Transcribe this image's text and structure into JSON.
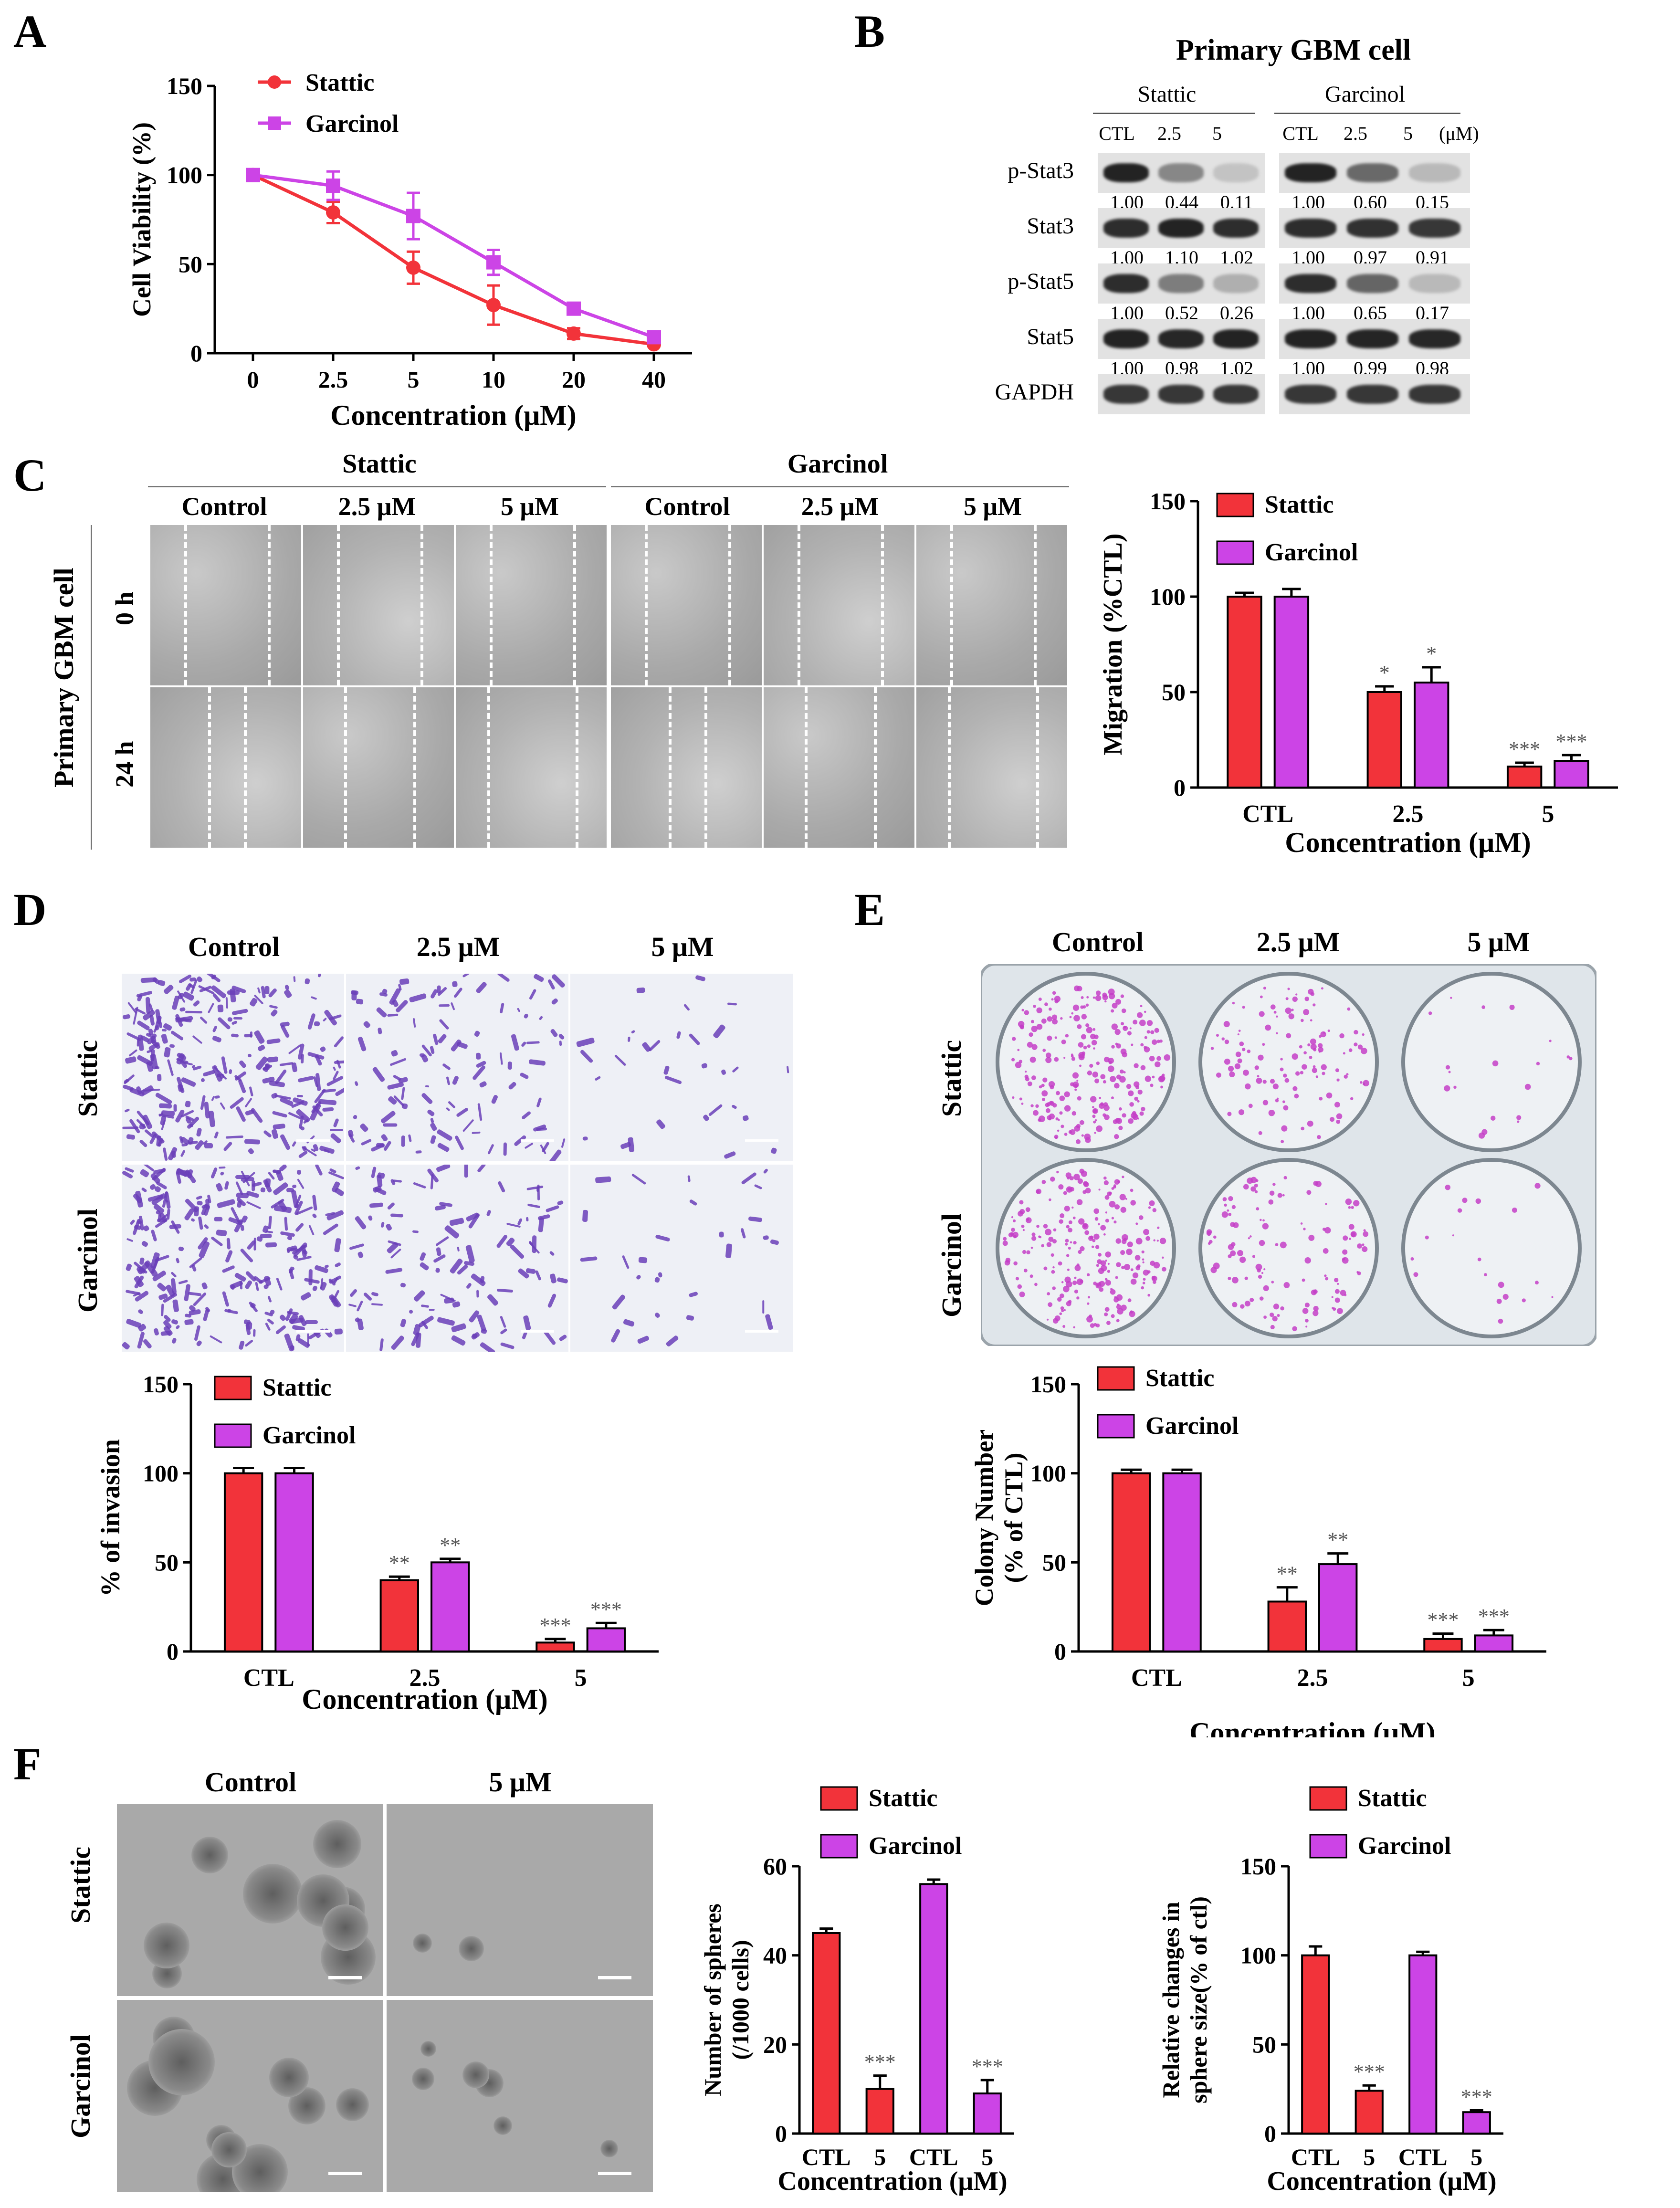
{
  "panels": {
    "A": "A",
    "B": "B",
    "C": "C",
    "D": "D",
    "E": "E",
    "F": "F"
  },
  "colors": {
    "stattic": "#f2333a",
    "garcinol": "#cc44e6"
  },
  "legend": {
    "stattic": "Stattic",
    "garcinol": "Garcinol"
  },
  "chart_data": [
    {
      "id": "A",
      "type": "line",
      "title": "",
      "xlabel": "Concentration (μM)",
      "ylabel": "Cell Viability (%)",
      "categories": [
        "0",
        "2.5",
        "5",
        "10",
        "20",
        "40"
      ],
      "ylim": [
        0,
        150
      ],
      "yticks": [
        "0",
        "50",
        "100",
        "150"
      ],
      "series": [
        {
          "name": "Stattic",
          "values": [
            100,
            79,
            48,
            27,
            11,
            5
          ],
          "errors": [
            3,
            6,
            9,
            11,
            3,
            1
          ]
        },
        {
          "name": "Garcinol",
          "values": [
            100,
            94,
            77,
            51,
            25,
            9
          ],
          "errors": [
            3,
            8,
            13,
            7,
            3,
            1
          ]
        }
      ]
    },
    {
      "id": "C",
      "type": "bar",
      "title": "",
      "xlabel": "Concentration (μM)",
      "ylabel": "Migration (%CTL)",
      "categories": [
        "CTL",
        "2.5",
        "5"
      ],
      "ylim": [
        0,
        150
      ],
      "yticks": [
        "0",
        "50",
        "100",
        "150"
      ],
      "series": [
        {
          "name": "Stattic",
          "values": [
            100,
            50,
            11
          ],
          "errors": [
            2,
            3,
            2
          ]
        },
        {
          "name": "Garcinol",
          "values": [
            100,
            55,
            14
          ],
          "errors": [
            4,
            8,
            3
          ]
        }
      ],
      "annotations": [
        [
          "",
          "*",
          "***"
        ],
        [
          "",
          "*",
          "***"
        ]
      ]
    },
    {
      "id": "D",
      "type": "bar",
      "title": "",
      "xlabel": "Concentration (μM)",
      "ylabel": "% of invasion",
      "categories": [
        "CTL",
        "2.5",
        "5"
      ],
      "ylim": [
        0,
        150
      ],
      "yticks": [
        "0",
        "50",
        "100",
        "150"
      ],
      "series": [
        {
          "name": "Stattic",
          "values": [
            100,
            40,
            5
          ],
          "errors": [
            3,
            2,
            2
          ]
        },
        {
          "name": "Garcinol",
          "values": [
            100,
            50,
            13
          ],
          "errors": [
            3,
            2,
            3
          ]
        }
      ],
      "annotations": [
        [
          "",
          "**",
          "***"
        ],
        [
          "",
          "**",
          "***"
        ]
      ]
    },
    {
      "id": "E",
      "type": "bar",
      "title": "",
      "xlabel": "Concentration (μM)",
      "ylabel": "Colony Number",
      "ylabel2": "(% of CTL)",
      "categories": [
        "CTL",
        "2.5",
        "5"
      ],
      "ylim": [
        0,
        150
      ],
      "yticks": [
        "0",
        "50",
        "100",
        "150"
      ],
      "series": [
        {
          "name": "Stattic",
          "values": [
            100,
            28,
            7
          ],
          "errors": [
            2,
            8,
            3
          ]
        },
        {
          "name": "Garcinol",
          "values": [
            100,
            49,
            9
          ],
          "errors": [
            2,
            6,
            3
          ]
        }
      ],
      "annotations": [
        [
          "",
          "**",
          "***"
        ],
        [
          "",
          "**",
          "***"
        ]
      ]
    },
    {
      "id": "F1",
      "type": "bar",
      "title": "",
      "xlabel": "Concentration (μM)",
      "ylabel": "Number of spheres",
      "ylabel2": "(/1000 cells)",
      "categories": [
        "CTL",
        "5",
        "CTL",
        "5"
      ],
      "ylim": [
        0,
        60
      ],
      "yticks": [
        "0",
        "20",
        "40",
        "60"
      ],
      "bars": [
        {
          "series": "Stattic",
          "value": 45,
          "error": 1,
          "mark": ""
        },
        {
          "series": "Stattic",
          "value": 10,
          "error": 3,
          "mark": "***"
        },
        {
          "series": "Garcinol",
          "value": 56,
          "error": 1,
          "mark": ""
        },
        {
          "series": "Garcinol",
          "value": 9,
          "error": 3,
          "mark": "***"
        }
      ]
    },
    {
      "id": "F2",
      "type": "bar",
      "title": "",
      "xlabel": "Concentration (μM)",
      "ylabel": "Relative changes in",
      "ylabel2": "sphere size(% of ctl)",
      "categories": [
        "CTL",
        "5",
        "CTL",
        "5"
      ],
      "ylim": [
        0,
        150
      ],
      "yticks": [
        "0",
        "50",
        "100",
        "150"
      ],
      "bars": [
        {
          "series": "Stattic",
          "value": 100,
          "error": 5,
          "mark": ""
        },
        {
          "series": "Stattic",
          "value": 24,
          "error": 3,
          "mark": "***"
        },
        {
          "series": "Garcinol",
          "value": 100,
          "error": 2,
          "mark": ""
        },
        {
          "series": "Garcinol",
          "value": 12,
          "error": 1,
          "mark": "***"
        }
      ]
    }
  ],
  "panelB": {
    "title": "Primary GBM cell",
    "groups": [
      "Stattic",
      "Garcinol"
    ],
    "lanes": [
      "CTL",
      "2.5",
      "5"
    ],
    "unit": "(μM)",
    "rows": [
      {
        "label": "p-Stat3",
        "left": [
          "1.00",
          "0.44",
          "0.11"
        ],
        "right": [
          "1.00",
          "0.60",
          "0.15"
        ],
        "intensity": [
          [
            0.95,
            0.45,
            0.15
          ],
          [
            0.95,
            0.6,
            0.2
          ]
        ]
      },
      {
        "label": "Stat3",
        "left": [
          "1.00",
          "1.10",
          "1.02"
        ],
        "right": [
          "1.00",
          "0.97",
          "0.91"
        ],
        "intensity": [
          [
            0.9,
            0.95,
            0.9
          ],
          [
            0.9,
            0.88,
            0.85
          ]
        ]
      },
      {
        "label": "p-Stat5",
        "left": [
          "1.00",
          "0.52",
          "0.26"
        ],
        "right": [
          "1.00",
          "0.65",
          "0.17"
        ],
        "intensity": [
          [
            0.9,
            0.5,
            0.25
          ],
          [
            0.9,
            0.62,
            0.2
          ]
        ]
      },
      {
        "label": "Stat5",
        "left": [
          "1.00",
          "0.98",
          "1.02"
        ],
        "right": [
          "1.00",
          "0.99",
          "0.98"
        ],
        "intensity": [
          [
            0.95,
            0.93,
            0.95
          ],
          [
            0.95,
            0.94,
            0.93
          ]
        ]
      },
      {
        "label": "GAPDH",
        "left": [],
        "right": [],
        "intensity": [
          [
            0.85,
            0.85,
            0.85
          ],
          [
            0.85,
            0.85,
            0.85
          ]
        ]
      }
    ]
  },
  "panelC": {
    "groups": [
      "Stattic",
      "Garcinol"
    ],
    "conds": [
      "Control",
      "2.5 μM",
      "5 μM"
    ],
    "side": "Primary GBM cell",
    "times": [
      "0 h",
      "24 h"
    ]
  },
  "panelD": {
    "conds": [
      "Control",
      "2.5 μM",
      "5 μM"
    ],
    "rows": [
      "Stattic",
      "Garcinol"
    ]
  },
  "panelE": {
    "conds": [
      "Control",
      "2.5 μM",
      "5 μM"
    ],
    "rows": [
      "Stattic",
      "Garcinol"
    ]
  },
  "panelF": {
    "conds": [
      "Control",
      "5 μM"
    ],
    "rows": [
      "Stattic",
      "Garcinol"
    ]
  }
}
